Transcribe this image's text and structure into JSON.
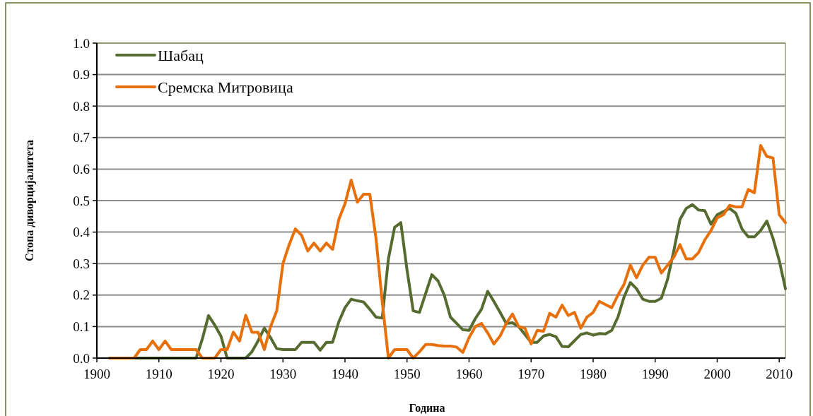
{
  "chart_data": {
    "type": "line",
    "xlabel": "Година",
    "ylabel": "Стопа диворцијалитета",
    "xlim": [
      1900,
      2011
    ],
    "xticks": [
      1900,
      1910,
      1920,
      1930,
      1940,
      1950,
      1960,
      1970,
      1980,
      1990,
      2000,
      2010
    ],
    "ylim": [
      0,
      1
    ],
    "yticks": [
      {
        "value": 0,
        "label": "0.0"
      },
      0.1,
      0.2,
      0.3,
      0.4,
      0.5,
      0.6,
      0.7,
      0.8,
      0.9,
      {
        "value": 1,
        "label": "1.0"
      }
    ],
    "grid": "y",
    "legend": "top left",
    "line_style": "solid",
    "marker": "none",
    "x": [
      1902,
      1903,
      1904,
      1905,
      1906,
      1907,
      1908,
      1909,
      1910,
      1911,
      1912,
      1913,
      1914,
      1915,
      1916,
      1917,
      1918,
      1919,
      1920,
      1921,
      1922,
      1923,
      1924,
      1925,
      1926,
      1927,
      1928,
      1929,
      1930,
      1931,
      1932,
      1933,
      1934,
      1935,
      1936,
      1937,
      1938,
      1939,
      1940,
      1941,
      1942,
      1943,
      1944,
      1945,
      1946,
      1947,
      1948,
      1949,
      1950,
      1951,
      1952,
      1953,
      1954,
      1955,
      1956,
      1957,
      1958,
      1959,
      1960,
      1961,
      1962,
      1963,
      1964,
      1965,
      1966,
      1967,
      1968,
      1969,
      1970,
      1971,
      1972,
      1973,
      1974,
      1975,
      1976,
      1977,
      1978,
      1979,
      1980,
      1981,
      1982,
      1983,
      1984,
      1985,
      1986,
      1987,
      1988,
      1989,
      1990,
      1991,
      1992,
      1993,
      1994,
      1995,
      1996,
      1997,
      1998,
      1999,
      2000,
      2001,
      2002,
      2003,
      2004,
      2005,
      2006,
      2007,
      2008,
      2009,
      2010,
      2011
    ],
    "series": [
      {
        "name": "Шабац",
        "color": "#556b2f",
        "values": [
          null,
          null,
          null,
          0,
          0,
          0,
          0,
          0,
          0,
          0,
          0,
          0,
          0,
          0,
          0,
          0.06,
          0.135,
          0.105,
          0.07,
          0,
          0,
          0,
          0,
          0.02,
          0.055,
          0.095,
          0.065,
          0.03,
          0.027,
          0.027,
          0.027,
          0.05,
          0.05,
          0.05,
          0.025,
          0.05,
          0.05,
          0.115,
          0.16,
          0.187,
          0.182,
          0.178,
          0.155,
          0.13,
          0.127,
          0.315,
          0.415,
          0.43,
          0.28,
          0.15,
          0.145,
          0.205,
          0.265,
          0.245,
          0.2,
          0.13,
          0.11,
          0.09,
          0.088,
          0.125,
          0.155,
          0.212,
          0.18,
          0.145,
          0.11,
          0.112,
          0.1,
          0.075,
          0.05,
          0.05,
          0.07,
          0.075,
          0.068,
          0.037,
          0.036,
          0.055,
          0.075,
          0.08,
          0.073,
          0.078,
          0.077,
          0.088,
          0.13,
          0.195,
          0.24,
          0.22,
          0.187,
          0.18,
          0.18,
          0.19,
          0.25,
          0.34,
          0.44,
          0.475,
          0.487,
          0.47,
          0.468,
          0.425,
          0.455,
          0.465,
          0.475,
          0.46,
          0.41,
          0.385,
          0.385,
          0.405,
          0.435,
          0.38,
          0.31,
          0.22
        ]
      },
      {
        "name": "Сремска Митровица",
        "color": "#e8700a",
        "values": [
          0,
          0,
          0,
          0,
          0,
          0.027,
          0.027,
          0.054,
          0.027,
          0.054,
          0.027,
          0.027,
          0.027,
          0.027,
          0.027,
          0,
          0,
          0,
          0.027,
          0.027,
          0.082,
          0.054,
          0.136,
          0.082,
          0.082,
          0.027,
          0.1,
          0.15,
          0.3,
          0.36,
          0.41,
          0.39,
          0.34,
          0.365,
          0.34,
          0.365,
          0.345,
          0.44,
          0.49,
          0.565,
          0.495,
          0.52,
          0.52,
          0.38,
          0.18,
          0,
          0.027,
          0.027,
          0.027,
          0,
          0.02,
          0.043,
          0.043,
          0.04,
          0.038,
          0.038,
          0.035,
          0.018,
          0.065,
          0.1,
          0.11,
          0.08,
          0.045,
          0.07,
          0.11,
          0.14,
          0.1,
          0.095,
          0.045,
          0.088,
          0.085,
          0.142,
          0.13,
          0.168,
          0.135,
          0.145,
          0.095,
          0.13,
          0.145,
          0.18,
          0.17,
          0.16,
          0.2,
          0.235,
          0.295,
          0.255,
          0.295,
          0.32,
          0.32,
          0.27,
          0.295,
          0.32,
          0.36,
          0.315,
          0.315,
          0.335,
          0.375,
          0.405,
          0.445,
          0.455,
          0.485,
          0.48,
          0.48,
          0.535,
          0.525,
          0.675,
          0.64,
          0.635,
          0.455,
          0.43
        ]
      }
    ]
  }
}
